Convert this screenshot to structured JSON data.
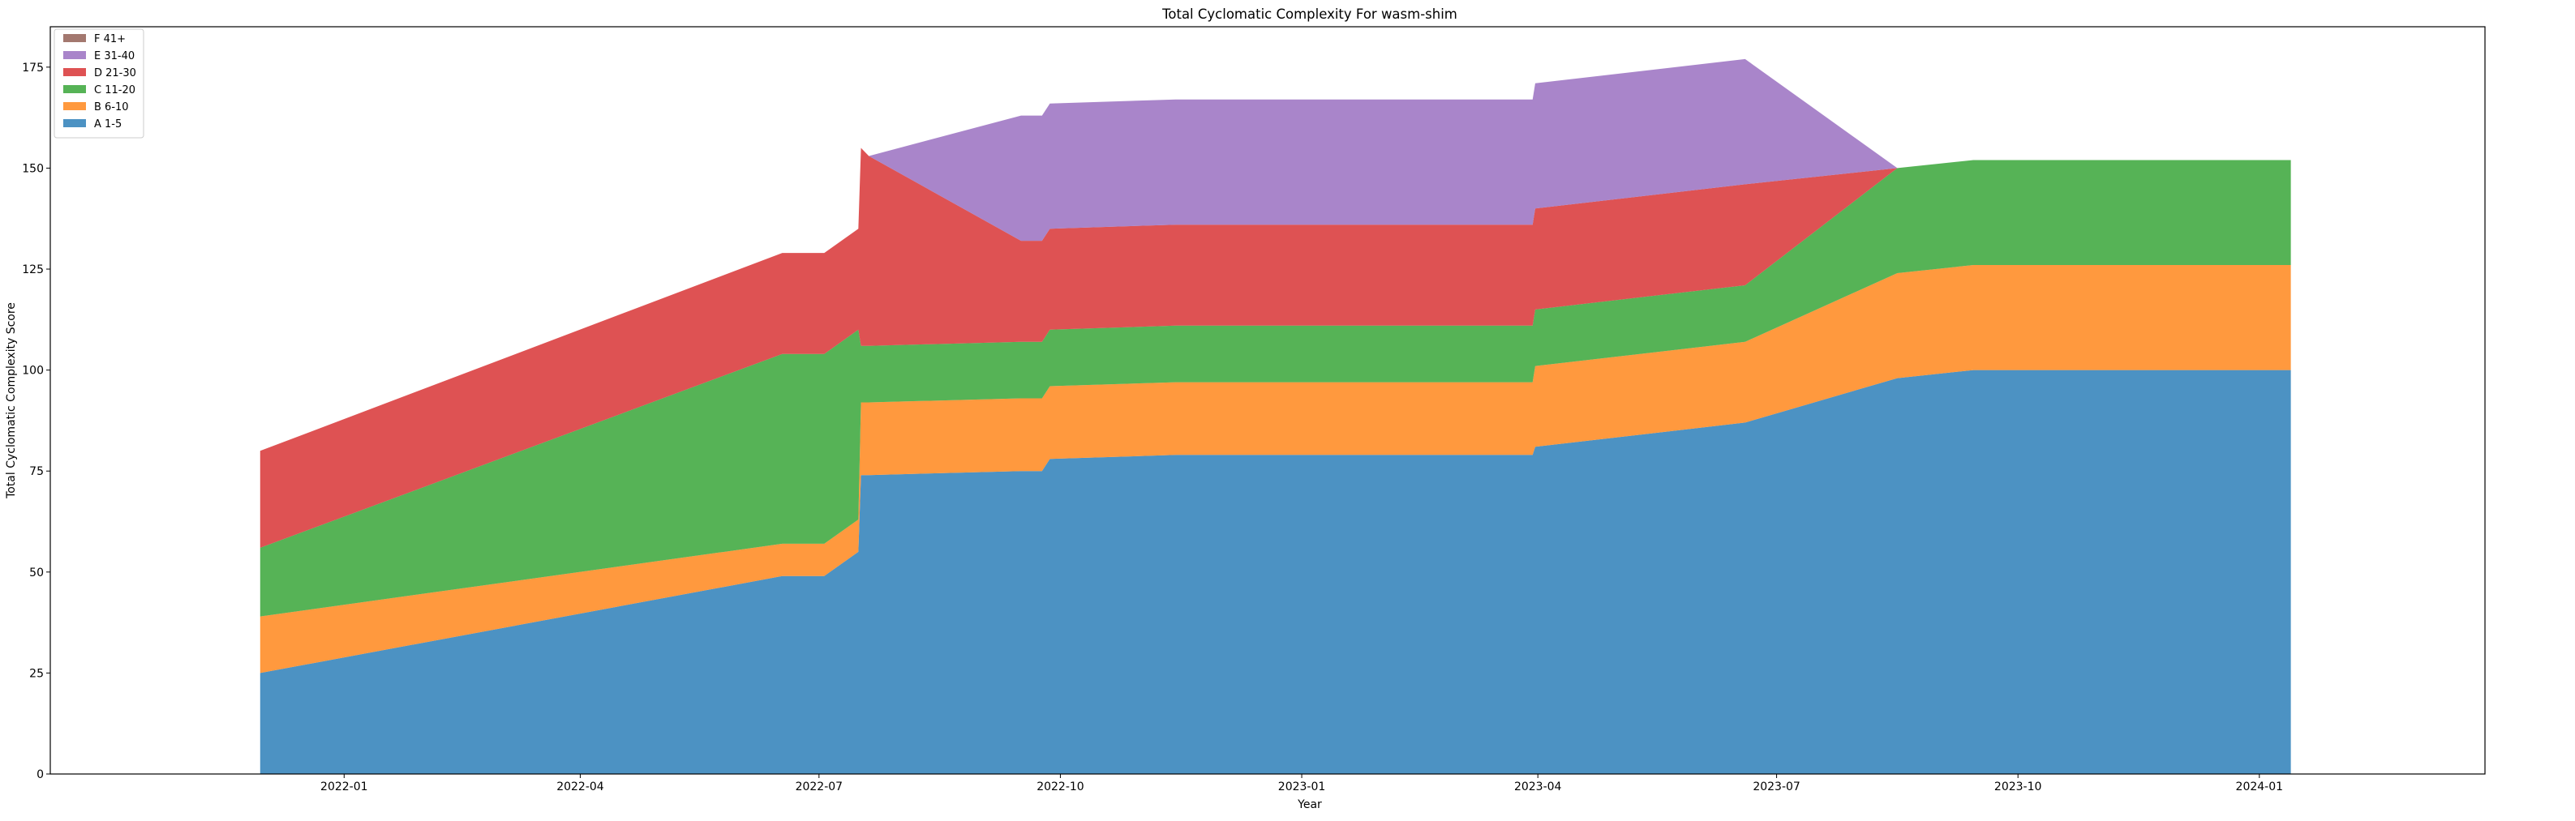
{
  "chart_data": {
    "type": "area",
    "stacked": true,
    "title": "Total Cyclomatic Complexity For wasm-shim",
    "xlabel": "Year",
    "ylabel": "Total Cyclomatic Complexity Score",
    "ylim": [
      0,
      185
    ],
    "xlim": [
      "2021-09-11",
      "2024-03-27"
    ],
    "yticks": [
      0,
      25,
      50,
      75,
      100,
      125,
      150,
      175
    ],
    "xticks": [
      {
        "date": "2022-01-01",
        "label": "2022-01"
      },
      {
        "date": "2022-04-01",
        "label": "2022-04"
      },
      {
        "date": "2022-07-01",
        "label": "2022-07"
      },
      {
        "date": "2022-10-01",
        "label": "2022-10"
      },
      {
        "date": "2023-01-01",
        "label": "2023-01"
      },
      {
        "date": "2023-04-01",
        "label": "2023-04"
      },
      {
        "date": "2023-07-01",
        "label": "2023-07"
      },
      {
        "date": "2023-10-01",
        "label": "2023-10"
      },
      {
        "date": "2024-01-01",
        "label": "2024-01"
      }
    ],
    "grid": false,
    "legend_position": "top-left",
    "x": [
      "2021-11-30",
      "2022-06-17",
      "2022-07-03",
      "2022-07-16",
      "2022-07-17",
      "2022-07-20",
      "2022-09-16",
      "2022-09-24",
      "2022-09-27",
      "2022-11-14",
      "2023-03-30",
      "2023-03-31",
      "2023-06-19",
      "2023-08-16",
      "2023-09-14",
      "2024-01-13"
    ],
    "series": [
      {
        "name": "A 1-5",
        "color": "#1f77b4",
        "values": [
          25,
          49,
          49,
          55,
          74,
          74,
          75,
          75,
          78,
          79,
          79,
          81,
          87,
          98,
          100,
          100
        ]
      },
      {
        "name": "B 6-10",
        "color": "#ff7f0e",
        "values": [
          14,
          8,
          8,
          8,
          18,
          18,
          18,
          18,
          18,
          18,
          18,
          20,
          20,
          26,
          26,
          26
        ]
      },
      {
        "name": "C 11-20",
        "color": "#2ca02c",
        "values": [
          17,
          47,
          47,
          47,
          14,
          14,
          14,
          14,
          14,
          14,
          14,
          14,
          14,
          26,
          26,
          26
        ]
      },
      {
        "name": "D 21-30",
        "color": "#d62728",
        "values": [
          24,
          25,
          25,
          25,
          49,
          47,
          25,
          25,
          25,
          25,
          25,
          25,
          25,
          0,
          0,
          0
        ]
      },
      {
        "name": "E 31-40",
        "color": "#9467bd",
        "values": [
          0,
          0,
          0,
          0,
          0,
          0,
          31,
          31,
          31,
          31,
          31,
          31,
          31,
          0,
          0,
          0
        ]
      },
      {
        "name": "F 41+",
        "color": "#8c564b",
        "values": [
          0,
          0,
          0,
          0,
          0,
          0,
          0,
          0,
          0,
          0,
          0,
          0,
          0,
          0,
          0,
          0
        ]
      }
    ]
  }
}
